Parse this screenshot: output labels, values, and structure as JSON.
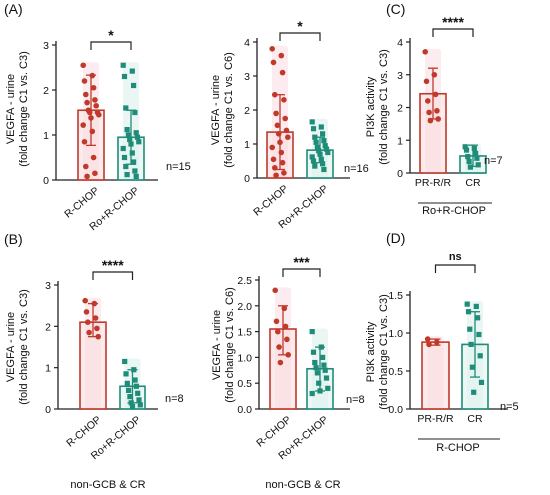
{
  "figure": {
    "panel_labels": [
      "(A)",
      "(B)",
      "(C)",
      "(D)"
    ]
  },
  "colors": {
    "red": "#c0392b",
    "red_fill": "#fadadd",
    "red_halo": "#f5c6d2",
    "teal": "#1e8c78",
    "teal_fill": "#dff2ee",
    "teal_halo": "#bfe6dc",
    "axis": "#222222"
  },
  "chart_data": [
    {
      "id": "A1",
      "panel": "(A)",
      "type": "bar",
      "ylabel_lines": [
        "VEGFA - urine",
        "(fold change C1 vs. C3)"
      ],
      "yticks": [
        "0",
        "1",
        "2",
        "3"
      ],
      "ylim": [
        0,
        3
      ],
      "categories": [
        "R-CHOP",
        "Ro+R-CHOP"
      ],
      "means": [
        1.55,
        0.95
      ],
      "sd_upper": [
        2.33,
        1.55
      ],
      "sd_lower": [
        0.77,
        0.35
      ],
      "points": [
        [
          2.55,
          2.32,
          2.2,
          2.05,
          1.9,
          1.78,
          1.72,
          1.65,
          1.55,
          1.5,
          1.5,
          1.45,
          1.38,
          1.22,
          1.08,
          0.85,
          0.5,
          0.3,
          0.15,
          0.08
        ],
        [
          2.55,
          2.42,
          2.3,
          2.1,
          1.6,
          1.5,
          1.12,
          1.05,
          1.0,
          0.95,
          0.9,
          0.85,
          0.8,
          0.7,
          0.6,
          0.5,
          0.4,
          0.3,
          0.2,
          0.12,
          0.08
        ]
      ],
      "significance": "*",
      "n_label": "n=15",
      "subtitle": ""
    },
    {
      "id": "A2",
      "panel": "",
      "type": "bar",
      "ylabel_lines": [
        "VEGFA - urine",
        "(fold change C1 vs. C6)"
      ],
      "yticks": [
        "0",
        "1",
        "2",
        "3",
        "4"
      ],
      "ylim": [
        0,
        4
      ],
      "categories": [
        "R-CHOP",
        "Ro+R-CHOP"
      ],
      "means": [
        1.35,
        0.82
      ],
      "sd_upper": [
        2.45,
        1.2
      ],
      "sd_lower": [
        0.25,
        0.45
      ],
      "points": [
        [
          3.8,
          3.6,
          3.4,
          3.1,
          2.45,
          2.3,
          1.9,
          1.75,
          1.55,
          1.4,
          1.3,
          1.2,
          1.05,
          0.9,
          0.75,
          0.55,
          0.45,
          0.3,
          0.15,
          0.08
        ],
        [
          1.65,
          1.5,
          1.45,
          1.3,
          1.2,
          1.1,
          1.05,
          0.95,
          0.9,
          0.85,
          0.8,
          0.75,
          0.7,
          0.62,
          0.55,
          0.5,
          0.42,
          0.35,
          0.25
        ]
      ],
      "significance": "*",
      "n_label": "n=16",
      "subtitle": ""
    },
    {
      "id": "B1",
      "panel": "(B)",
      "type": "bar",
      "ylabel_lines": [
        "VEGFA - urine",
        "(fold change C1 vs. C3)"
      ],
      "yticks": [
        "0",
        "1",
        "2",
        "3"
      ],
      "ylim": [
        0,
        3
      ],
      "categories": [
        "R-CHOP",
        "Ro+R-CHOP"
      ],
      "means": [
        2.1,
        0.55
      ],
      "sd_upper": [
        2.55,
        0.95
      ],
      "sd_lower": [
        1.75,
        0.15
      ],
      "points": [
        [
          2.62,
          2.55,
          2.35,
          2.2,
          2.1,
          1.95,
          1.85,
          1.75
        ],
        [
          1.15,
          0.95,
          0.85,
          0.7,
          0.62,
          0.55,
          0.45,
          0.38,
          0.3,
          0.22,
          0.15,
          0.1,
          0.06
        ]
      ],
      "significance": "****",
      "n_label": "n=8",
      "subtitle": "non-GCB & CR"
    },
    {
      "id": "B2",
      "panel": "",
      "type": "bar",
      "ylabel_lines": [
        "VEGFA - urine",
        "(fold change C1 vs. C6)"
      ],
      "yticks": [
        "0.0",
        "0.5",
        "1.0",
        "1.5",
        "2.0",
        "2.5"
      ],
      "ylim": [
        0,
        2.5
      ],
      "categories": [
        "R-CHOP",
        "Ro+R-CHOP"
      ],
      "means": [
        1.55,
        0.78
      ],
      "sd_upper": [
        2.0,
        1.2
      ],
      "sd_lower": [
        1.05,
        0.35
      ],
      "points": [
        [
          2.3,
          1.95,
          1.7,
          1.6,
          1.5,
          1.35,
          1.2,
          1.05,
          0.9
        ],
        [
          1.5,
          1.2,
          1.1,
          1.0,
          0.9,
          0.85,
          0.8,
          0.75,
          0.7,
          0.6,
          0.5,
          0.4,
          0.35,
          0.3
        ]
      ],
      "significance": "***",
      "n_label": "n=8",
      "subtitle": "non-GCB & CR"
    },
    {
      "id": "C",
      "panel": "(C)",
      "type": "bar",
      "ylabel_lines": [
        "PI3K activity",
        "(fold change C1 vs. C3)"
      ],
      "yticks": [
        "0",
        "1",
        "2",
        "3",
        "4"
      ],
      "ylim": [
        0,
        4
      ],
      "categories": [
        "PR-R/R",
        "CR"
      ],
      "means": [
        2.42,
        0.52
      ],
      "sd_upper": [
        3.2,
        0.85
      ],
      "sd_lower": [
        1.65,
        0.2
      ],
      "points": [
        [
          3.7,
          3.0,
          2.8,
          2.4,
          2.2,
          1.9,
          1.85,
          1.65,
          1.6
        ],
        [
          0.8,
          0.75,
          0.7,
          0.6,
          0.5,
          0.45,
          0.35,
          0.25,
          0.18
        ]
      ],
      "significance": "****",
      "n_label": "n=7",
      "subtitle": "Ro+R-CHOP"
    },
    {
      "id": "D",
      "panel": "(D)",
      "type": "bar",
      "ylabel_lines": [
        "PI3K activity",
        "(fold change C1 vs. C3)"
      ],
      "yticks": [
        "0.0",
        "0.5",
        "1.0",
        "1.5"
      ],
      "ylim": [
        0,
        1.5
      ],
      "categories": [
        "PR-R/R",
        "CR"
      ],
      "means": [
        0.88,
        0.85
      ],
      "sd_upper": [
        0.92,
        1.28
      ],
      "sd_lower": [
        0.84,
        0.42
      ],
      "points": [
        [
          0.92,
          0.88,
          0.85
        ],
        [
          1.38,
          1.35,
          1.28,
          1.2,
          1.05,
          0.98,
          0.85,
          0.7,
          0.55,
          0.35,
          0.22
        ]
      ],
      "significance": "ns",
      "n_label": "n=5",
      "subtitle": "R-CHOP"
    }
  ]
}
